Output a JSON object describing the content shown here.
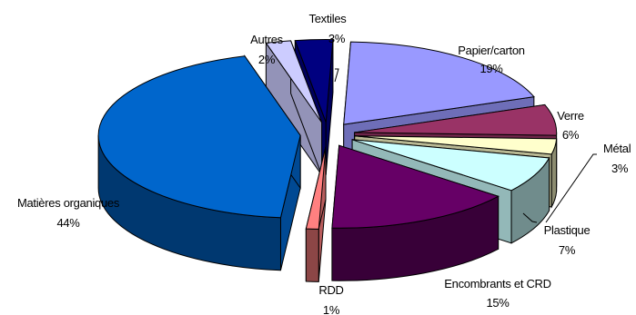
{
  "chart_data": {
    "type": "pie",
    "style": "3d-exploded",
    "legend": "none",
    "title": "",
    "slices": [
      {
        "name": "Papier/carton",
        "value": 19,
        "label": "19%",
        "color": "#9999ff"
      },
      {
        "name": "Verre",
        "value": 6,
        "label": "6%",
        "color": "#993366"
      },
      {
        "name": "Métal",
        "value": 3,
        "label": "3%",
        "color": "#ffffcc"
      },
      {
        "name": "Plastique",
        "value": 7,
        "label": "7%",
        "color": "#ccffff"
      },
      {
        "name": "Encombrants et CRD",
        "value": 15,
        "label": "15%",
        "color": "#660066"
      },
      {
        "name": "RDD",
        "value": 1,
        "label": "1%",
        "color": "#ff8080"
      },
      {
        "name": "Matières organiques",
        "value": 44,
        "label": "44%",
        "color": "#0066cc"
      },
      {
        "name": "Autres",
        "value": 2,
        "label": "2%",
        "color": "#ccccff"
      },
      {
        "name": "Textiles",
        "value": 3,
        "label": "3%",
        "color": "#000080"
      }
    ]
  }
}
